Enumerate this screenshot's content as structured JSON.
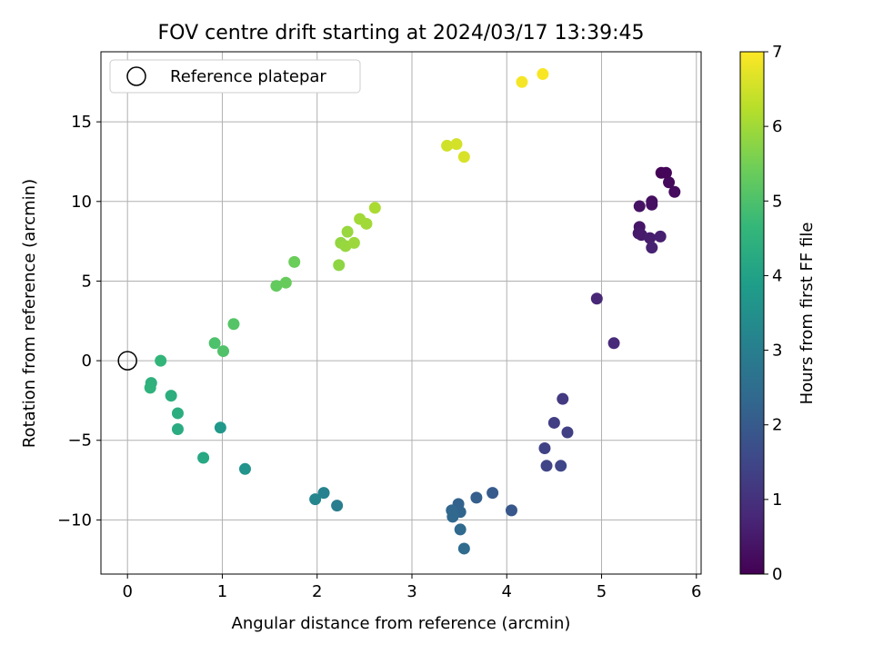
{
  "chart_data": {
    "type": "scatter",
    "title": "FOV centre drift starting at 2024/03/17 13:39:45",
    "xlabel": "Angular distance from reference (arcmin)",
    "ylabel": "Rotation from reference (arcmin)",
    "xlim": [
      -0.28,
      6.05
    ],
    "ylim": [
      -13.4,
      19.4
    ],
    "xticks": [
      0,
      1,
      2,
      3,
      4,
      5,
      6
    ],
    "yticks": [
      -10,
      -5,
      0,
      5,
      10,
      15
    ],
    "grid": true,
    "legend": {
      "placement": "top-left",
      "entries": [
        "Reference platepar"
      ]
    },
    "reference_point": {
      "x": 0,
      "y": 0
    },
    "colorbar": {
      "label": "Hours from first FF file",
      "range": [
        0,
        7
      ],
      "ticks": [
        0,
        1,
        2,
        3,
        4,
        5,
        6,
        7
      ],
      "colormap": [
        "#440154",
        "#482878",
        "#3e4989",
        "#31688e",
        "#26828e",
        "#1f9e89",
        "#35b779",
        "#6ece58",
        "#b5de2b",
        "#fde725"
      ]
    },
    "points": [
      {
        "x": 5.63,
        "y": 11.8,
        "h": 0.05
      },
      {
        "x": 5.68,
        "y": 11.8,
        "h": 0.1
      },
      {
        "x": 5.71,
        "y": 11.2,
        "h": 0.15
      },
      {
        "x": 5.77,
        "y": 10.6,
        "h": 0.2
      },
      {
        "x": 5.53,
        "y": 10.0,
        "h": 0.25
      },
      {
        "x": 5.53,
        "y": 9.8,
        "h": 0.3
      },
      {
        "x": 5.4,
        "y": 9.7,
        "h": 0.35
      },
      {
        "x": 5.4,
        "y": 8.4,
        "h": 0.4
      },
      {
        "x": 5.39,
        "y": 8.0,
        "h": 0.45
      },
      {
        "x": 5.42,
        "y": 7.9,
        "h": 0.5
      },
      {
        "x": 5.51,
        "y": 7.7,
        "h": 0.55
      },
      {
        "x": 5.62,
        "y": 7.8,
        "h": 0.6
      },
      {
        "x": 5.53,
        "y": 7.1,
        "h": 0.65
      },
      {
        "x": 4.95,
        "y": 3.9,
        "h": 0.75
      },
      {
        "x": 5.13,
        "y": 1.1,
        "h": 0.85
      },
      {
        "x": 4.59,
        "y": -2.4,
        "h": 1.2
      },
      {
        "x": 4.5,
        "y": -3.9,
        "h": 1.3
      },
      {
        "x": 4.64,
        "y": -4.5,
        "h": 1.35
      },
      {
        "x": 4.4,
        "y": -5.5,
        "h": 1.4
      },
      {
        "x": 4.42,
        "y": -6.6,
        "h": 1.45
      },
      {
        "x": 4.57,
        "y": -6.6,
        "h": 1.5
      },
      {
        "x": 4.05,
        "y": -9.4,
        "h": 1.9
      },
      {
        "x": 3.85,
        "y": -8.3,
        "h": 2.0
      },
      {
        "x": 3.68,
        "y": -8.6,
        "h": 2.1
      },
      {
        "x": 3.49,
        "y": -9.0,
        "h": 2.2
      },
      {
        "x": 3.51,
        "y": -9.5,
        "h": 2.25
      },
      {
        "x": 3.42,
        "y": -9.4,
        "h": 2.3
      },
      {
        "x": 3.43,
        "y": -9.8,
        "h": 2.35
      },
      {
        "x": 3.51,
        "y": -10.6,
        "h": 2.4
      },
      {
        "x": 3.55,
        "y": -11.8,
        "h": 2.45
      },
      {
        "x": 2.21,
        "y": -9.1,
        "h": 3.0
      },
      {
        "x": 2.07,
        "y": -8.3,
        "h": 3.1
      },
      {
        "x": 1.98,
        "y": -8.7,
        "h": 3.2
      },
      {
        "x": 1.24,
        "y": -6.8,
        "h": 3.6
      },
      {
        "x": 0.98,
        "y": -4.2,
        "h": 3.75
      },
      {
        "x": 0.8,
        "y": -6.1,
        "h": 4.2
      },
      {
        "x": 0.53,
        "y": -4.3,
        "h": 4.3
      },
      {
        "x": 0.53,
        "y": -3.3,
        "h": 4.35
      },
      {
        "x": 0.46,
        "y": -2.2,
        "h": 4.4
      },
      {
        "x": 0.25,
        "y": -1.4,
        "h": 4.45
      },
      {
        "x": 0.24,
        "y": -1.7,
        "h": 4.5
      },
      {
        "x": 0.35,
        "y": 0.0,
        "h": 4.6
      },
      {
        "x": 0.92,
        "y": 1.1,
        "h": 5.0
      },
      {
        "x": 1.01,
        "y": 0.6,
        "h": 5.05
      },
      {
        "x": 1.12,
        "y": 2.3,
        "h": 5.1
      },
      {
        "x": 1.57,
        "y": 4.7,
        "h": 5.3
      },
      {
        "x": 1.67,
        "y": 4.9,
        "h": 5.35
      },
      {
        "x": 1.76,
        "y": 6.2,
        "h": 5.4
      },
      {
        "x": 2.23,
        "y": 6.0,
        "h": 5.8
      },
      {
        "x": 2.25,
        "y": 7.4,
        "h": 5.85
      },
      {
        "x": 2.3,
        "y": 7.2,
        "h": 5.9
      },
      {
        "x": 2.32,
        "y": 8.1,
        "h": 5.9
      },
      {
        "x": 2.39,
        "y": 7.4,
        "h": 5.95
      },
      {
        "x": 2.45,
        "y": 8.9,
        "h": 6.0
      },
      {
        "x": 2.52,
        "y": 8.6,
        "h": 6.0
      },
      {
        "x": 2.61,
        "y": 9.6,
        "h": 6.1
      },
      {
        "x": 3.37,
        "y": 13.5,
        "h": 6.5
      },
      {
        "x": 3.47,
        "y": 13.6,
        "h": 6.55
      },
      {
        "x": 3.55,
        "y": 12.8,
        "h": 6.6
      },
      {
        "x": 4.16,
        "y": 17.5,
        "h": 6.9
      },
      {
        "x": 4.38,
        "y": 18.0,
        "h": 6.95
      }
    ]
  }
}
